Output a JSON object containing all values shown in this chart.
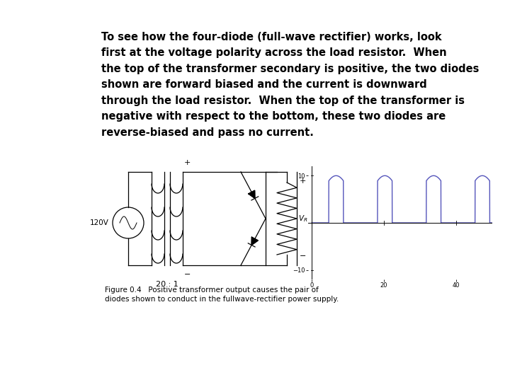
{
  "background_color": "#ffffff",
  "text_block": "To see how the four-diode (full-wave rectifier) works, look\nfirst at the voltage polarity across the load resistor.  When\nthe top of the transformer secondary is positive, the two diodes\nshown are forward biased and the current is downward\nthrough the load resistor.  When the top of the transformer is\nnegative with respect to the bottom, these two diodes are\nreverse-biased and pass no current.",
  "text_fontsize": 10.5,
  "text_color": "#000000",
  "figure_caption_line1": "Figure 0.4   Positive transformer output causes the pair of",
  "figure_caption_line2": "diodes shown to conduct in the fullwave-rectifier power supply.",
  "caption_fontsize": 7.5,
  "waveform_color": "#5555bb",
  "lw_circuit": 0.9
}
